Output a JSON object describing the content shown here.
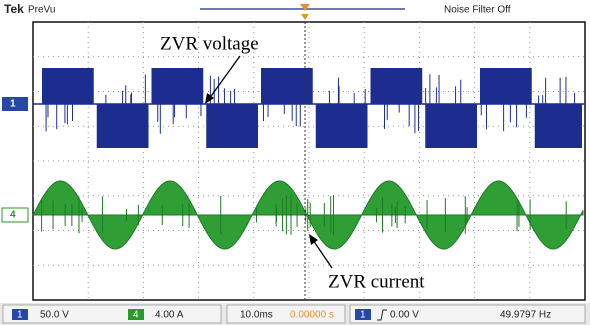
{
  "header": {
    "brand": "Tek",
    "mode": "PreVu",
    "noise_filter": "Noise Filter Off"
  },
  "markers": {
    "ch1": "1",
    "ch4": "4"
  },
  "annotations": {
    "voltage": "ZVR voltage",
    "current": "ZVR current"
  },
  "status": {
    "ch1_badge": "1",
    "ch1_scale": "50.0 V",
    "ch4_badge": "4",
    "ch4_scale": "4.00 A",
    "timebase": "10.0ms",
    "position": "0.00000 s",
    "trigger_source": "1",
    "trigger_level": "0.00 V",
    "frequency": "49.9797 Hz"
  }
}
